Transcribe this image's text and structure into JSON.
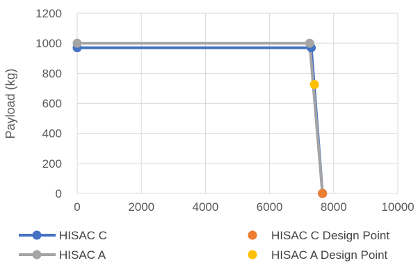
{
  "chart_data": {
    "type": "line",
    "title": "",
    "xlabel": "",
    "ylabel": "Payload (kg)",
    "xlim": [
      0,
      10000
    ],
    "ylim": [
      0,
      1200
    ],
    "xticks": [
      0,
      2000,
      4000,
      6000,
      8000,
      10000
    ],
    "yticks": [
      0,
      200,
      400,
      600,
      800,
      1000,
      1200
    ],
    "grid": true,
    "legend_position": "bottom",
    "series": [
      {
        "name": "HISAC C",
        "kind": "line",
        "color": "#4472C4",
        "points": [
          [
            0,
            970
          ],
          [
            7300,
            970
          ],
          [
            7650,
            0
          ]
        ]
      },
      {
        "name": "HISAC A",
        "kind": "line",
        "color": "#A5A5A5",
        "points": [
          [
            0,
            1000
          ],
          [
            7250,
            1000
          ],
          [
            7650,
            0
          ]
        ]
      },
      {
        "name": "HISAC C Design Point",
        "kind": "point",
        "color": "#ED7D31",
        "points": [
          [
            7650,
            0
          ]
        ]
      },
      {
        "name": "HISAC A Design Point",
        "kind": "point",
        "color": "#FFC000",
        "points": [
          [
            7400,
            725
          ]
        ]
      }
    ]
  }
}
